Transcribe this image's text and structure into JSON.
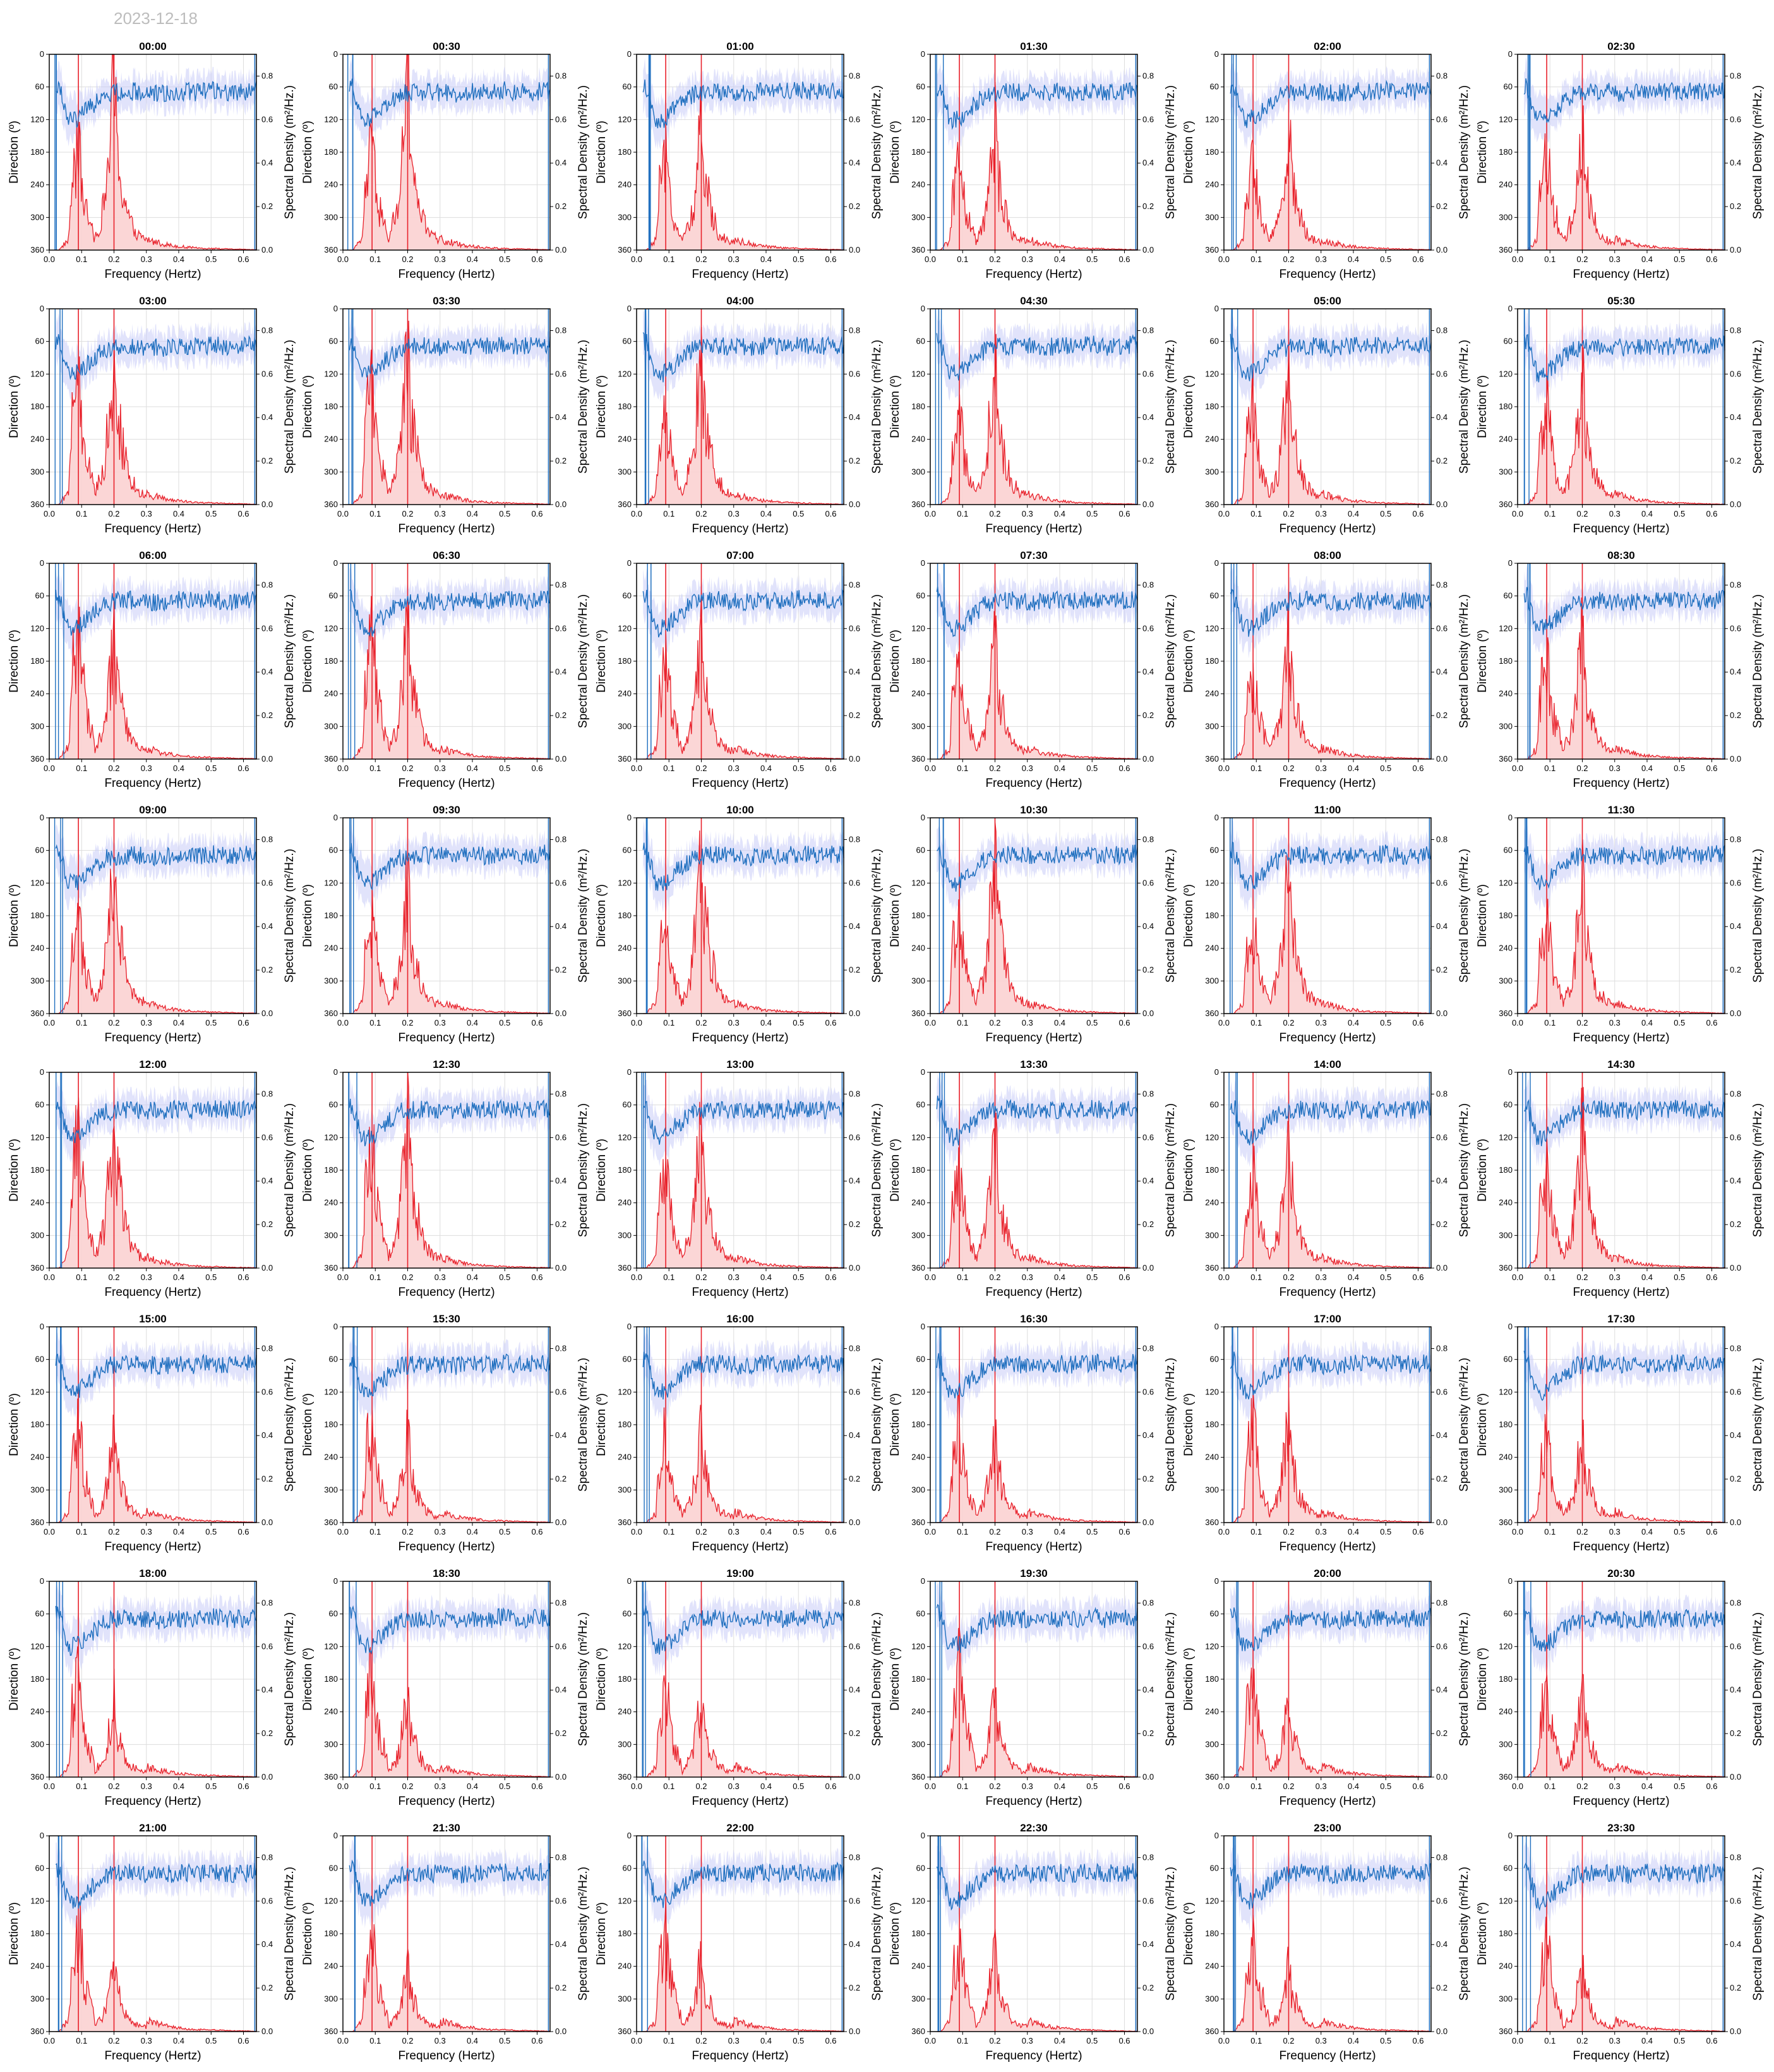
{
  "date": "2023-12-18",
  "colors": {
    "direction_line": "#1f6fbf",
    "direction_spread": "#c8ccf7",
    "density_line": "#e8212b",
    "density_fill": "#fbd2d2",
    "grid": "#dddddd",
    "axis": "#000000"
  },
  "chart_data": {
    "type": "line",
    "layout": "grid-8x6",
    "xlabel": "Frequency (Hertz)",
    "ylabel_left": "Direction (º)",
    "ylabel_right": "Spectral Density (m²/Hz.)",
    "xlim": [
      0.0,
      0.64
    ],
    "x_ticks": [
      "0.0",
      "0.1",
      "0.2",
      "0.3",
      "0.4",
      "0.5",
      "0.6"
    ],
    "ylim_left": [
      360,
      0
    ],
    "y_ticks_left": [
      "0",
      "60",
      "120",
      "180",
      "240",
      "300",
      "360"
    ],
    "ylim_right": [
      0.0,
      0.9
    ],
    "y_ticks_right": [
      "0.0",
      "0.2",
      "0.4",
      "0.6",
      "0.8"
    ],
    "grid": true,
    "series": [
      {
        "name": "Direction",
        "axis": "left",
        "color": "#1f6fbf",
        "x": [
          0.03,
          0.06,
          0.09,
          0.12,
          0.15,
          0.18,
          0.21,
          0.25,
          0.3,
          0.35,
          0.4,
          0.45,
          0.5,
          0.55,
          0.6,
          0.63
        ],
        "values": [
          60,
          120,
          118,
          100,
          85,
          72,
          70,
          68,
          70,
          72,
          68,
          70,
          66,
          70,
          68,
          66
        ]
      },
      {
        "name": "Spectral Density",
        "axis": "right",
        "color": "#e8212b",
        "x": [
          0.03,
          0.06,
          0.07,
          0.09,
          0.11,
          0.14,
          0.17,
          0.19,
          0.2,
          0.21,
          0.23,
          0.25,
          0.28,
          0.32,
          0.38,
          0.45,
          0.55,
          0.63
        ],
        "values": [
          0.0,
          0.05,
          0.3,
          0.45,
          0.2,
          0.05,
          0.2,
          0.55,
          0.75,
          0.45,
          0.25,
          0.12,
          0.06,
          0.04,
          0.02,
          0.01,
          0.005,
          0.002
        ]
      }
    ],
    "panels": [
      {
        "title": "00:00",
        "low_peak": 0.45,
        "high_peak": 0.75
      },
      {
        "title": "00:30",
        "low_peak": 0.45,
        "high_peak": 0.75
      },
      {
        "title": "01:00",
        "low_peak": 0.4,
        "high_peak": 0.55
      },
      {
        "title": "01:30",
        "low_peak": 0.4,
        "high_peak": 0.55
      },
      {
        "title": "02:00",
        "low_peak": 0.4,
        "high_peak": 0.55
      },
      {
        "title": "02:30",
        "low_peak": 0.45,
        "high_peak": 0.55
      },
      {
        "title": "03:00",
        "low_peak": 0.55,
        "high_peak": 0.7
      },
      {
        "title": "03:30",
        "low_peak": 0.55,
        "high_peak": 0.7
      },
      {
        "title": "04:00",
        "low_peak": 0.45,
        "high_peak": 0.7
      },
      {
        "title": "04:30",
        "low_peak": 0.4,
        "high_peak": 0.65
      },
      {
        "title": "05:00",
        "low_peak": 0.45,
        "high_peak": 0.6
      },
      {
        "title": "05:30",
        "low_peak": 0.45,
        "high_peak": 0.6
      },
      {
        "title": "06:00",
        "low_peak": 0.6,
        "high_peak": 0.55
      },
      {
        "title": "06:30",
        "low_peak": 0.55,
        "high_peak": 0.6
      },
      {
        "title": "07:00",
        "low_peak": 0.45,
        "high_peak": 0.55
      },
      {
        "title": "07:30",
        "low_peak": 0.45,
        "high_peak": 0.55
      },
      {
        "title": "08:00",
        "low_peak": 0.4,
        "high_peak": 0.55
      },
      {
        "title": "08:30",
        "low_peak": 0.45,
        "high_peak": 0.55
      },
      {
        "title": "09:00",
        "low_peak": 0.45,
        "high_peak": 0.75
      },
      {
        "title": "09:30",
        "low_peak": 0.45,
        "high_peak": 0.6
      },
      {
        "title": "10:00",
        "low_peak": 0.45,
        "high_peak": 0.75
      },
      {
        "title": "10:30",
        "low_peak": 0.45,
        "high_peak": 0.7
      },
      {
        "title": "11:00",
        "low_peak": 0.45,
        "high_peak": 0.7
      },
      {
        "title": "11:30",
        "low_peak": 0.45,
        "high_peak": 0.6
      },
      {
        "title": "12:00",
        "low_peak": 0.6,
        "high_peak": 0.7
      },
      {
        "title": "12:30",
        "low_peak": 0.55,
        "high_peak": 0.7
      },
      {
        "title": "13:00",
        "low_peak": 0.45,
        "high_peak": 0.65
      },
      {
        "title": "13:30",
        "low_peak": 0.45,
        "high_peak": 0.6
      },
      {
        "title": "14:00",
        "low_peak": 0.45,
        "high_peak": 0.6
      },
      {
        "title": "14:30",
        "low_peak": 0.45,
        "high_peak": 0.7
      },
      {
        "title": "15:00",
        "low_peak": 0.45,
        "high_peak": 0.4
      },
      {
        "title": "15:30",
        "low_peak": 0.45,
        "high_peak": 0.4
      },
      {
        "title": "16:00",
        "low_peak": 0.4,
        "high_peak": 0.4
      },
      {
        "title": "16:30",
        "low_peak": 0.45,
        "high_peak": 0.4
      },
      {
        "title": "17:00",
        "low_peak": 0.45,
        "high_peak": 0.45
      },
      {
        "title": "17:30",
        "low_peak": 0.4,
        "high_peak": 0.4
      },
      {
        "title": "18:00",
        "low_peak": 0.45,
        "high_peak": 0.35
      },
      {
        "title": "18:30",
        "low_peak": 0.5,
        "high_peak": 0.35
      },
      {
        "title": "19:00",
        "low_peak": 0.4,
        "high_peak": 0.35
      },
      {
        "title": "19:30",
        "low_peak": 0.5,
        "high_peak": 0.35
      },
      {
        "title": "20:00",
        "low_peak": 0.45,
        "high_peak": 0.35
      },
      {
        "title": "20:30",
        "low_peak": 0.4,
        "high_peak": 0.4
      },
      {
        "title": "21:00",
        "low_peak": 0.5,
        "high_peak": 0.3
      },
      {
        "title": "21:30",
        "low_peak": 0.45,
        "high_peak": 0.3
      },
      {
        "title": "22:00",
        "low_peak": 0.45,
        "high_peak": 0.35
      },
      {
        "title": "22:30",
        "low_peak": 0.4,
        "high_peak": 0.35
      },
      {
        "title": "23:00",
        "low_peak": 0.45,
        "high_peak": 0.3
      },
      {
        "title": "23:30",
        "low_peak": 0.45,
        "high_peak": 0.3
      }
    ]
  }
}
